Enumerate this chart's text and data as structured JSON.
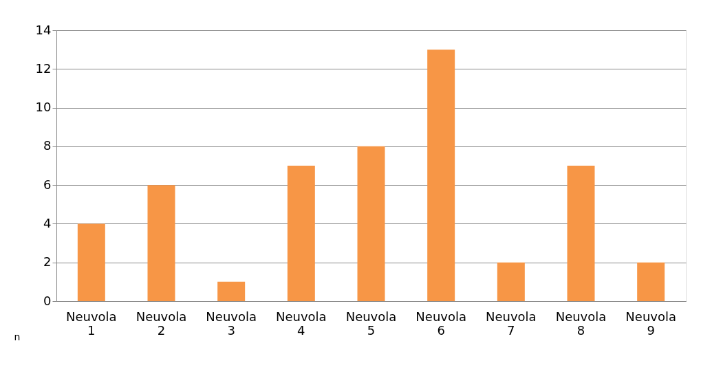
{
  "chart_data": {
    "type": "bar",
    "ylabel": "n",
    "categories": [
      "Neuvola 1",
      "Neuvola 2",
      "Neuvola 3",
      "Neuvola 4",
      "Neuvola 5",
      "Neuvola 6",
      "Neuvola 7",
      "Neuvola 8",
      "Neuvola 9"
    ],
    "values": [
      4,
      6,
      1,
      7,
      8,
      13,
      2,
      7,
      2
    ],
    "color": "#f79646",
    "ylim": [
      0,
      14
    ],
    "yticks": [
      0,
      2,
      4,
      6,
      8,
      10,
      12,
      14
    ],
    "grid": "y"
  }
}
